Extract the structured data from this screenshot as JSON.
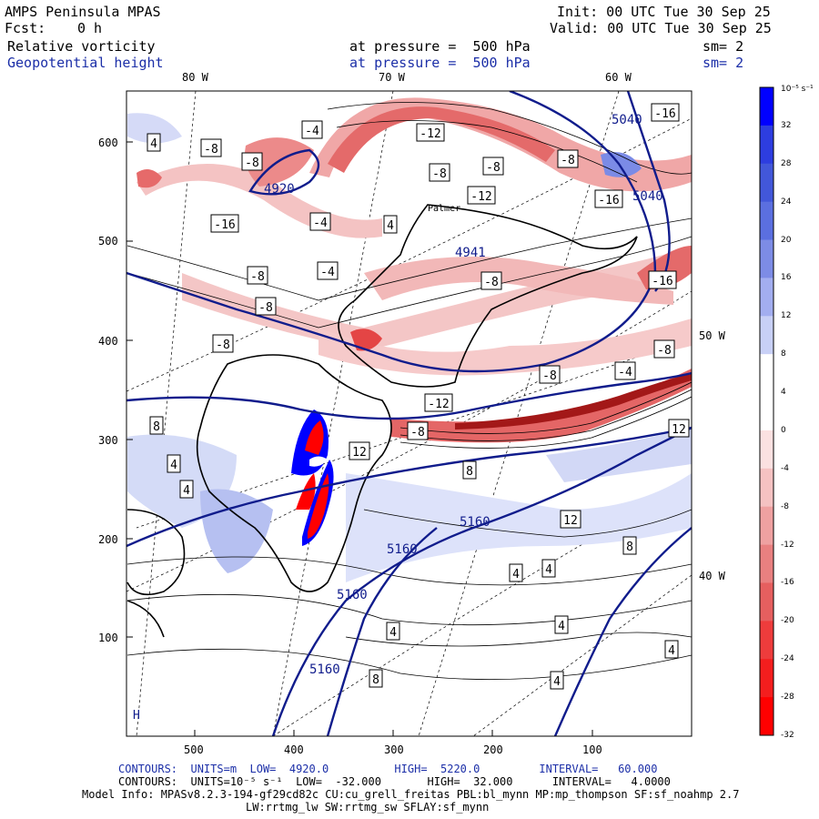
{
  "header": {
    "model": "AMPS Peninsula MPAS",
    "fcst_label": "Fcst:",
    "fcst_value": "0 h",
    "init": "Init: 00 UTC Tue 30 Sep 25",
    "valid": "Valid: 00 UTC Tue 30 Sep 25",
    "fields": [
      {
        "name": "Relative vorticity",
        "level": "at pressure =  500 hPa",
        "sm": "sm= 2",
        "color": "#000000"
      },
      {
        "name": "Geopotential height",
        "level": "at pressure =  500 hPa",
        "sm": "sm= 2",
        "color": "#1c2fa8"
      }
    ]
  },
  "map": {
    "top_lon_labels": [
      "80 W",
      "70 W",
      "60 W"
    ],
    "right_lon_labels": [
      "50 W",
      "40 W"
    ],
    "y_ticks": [
      "600",
      "500",
      "400",
      "300",
      "200",
      "100"
    ],
    "x_ticks": [
      "500",
      "400",
      "300",
      "200",
      "100"
    ],
    "place_labels": [
      "Palmer"
    ],
    "vort_contour_labels": [
      "4",
      "-8",
      "-8",
      "-4",
      "-12",
      "-8",
      "-8",
      "-16",
      "-16",
      "-4",
      "4",
      "-4",
      "-8",
      "-8",
      "-12",
      "-8",
      "-16",
      "-8",
      "-8",
      "-4",
      "-12",
      "-8",
      "12",
      "8",
      "4",
      "12",
      "8",
      "12",
      "4",
      "4",
      "4",
      "4",
      "4",
      "4",
      "8",
      "4",
      "8",
      "-16",
      "-8",
      "-8"
    ],
    "height_contour_labels": [
      "5040",
      "5040",
      "5160",
      "5160",
      "5160",
      "5160",
      "4920",
      "4941"
    ],
    "corner_label": "H",
    "colors": {
      "height_contour": "#101c8c",
      "vort_contour": "#000000",
      "coast": "#000000"
    }
  },
  "colorbar": {
    "unit_label": "10⁻⁵ s⁻¹",
    "tick_labels": [
      "32",
      "28",
      "24",
      "20",
      "16",
      "12",
      "8",
      "4",
      "0",
      "-4",
      "-8",
      "-12",
      "-16",
      "-20",
      "-24",
      "-28",
      "-32"
    ],
    "colors": [
      "#0000ff",
      "#2d3de0",
      "#4257da",
      "#5b6fe0",
      "#7d8ce6",
      "#a3aef0",
      "#c8d0f6",
      "#ffffff",
      "#ffffff",
      "#fbe1e1",
      "#f5c2c2",
      "#efa1a1",
      "#e98080",
      "#e65f5f",
      "#ee3c3c",
      "#f41e1e",
      "#ff0000"
    ]
  },
  "footer": {
    "line1": "CONTOURS:  UNITS=m  LOW=  4920.0          HIGH=  5220.0         INTERVAL=   60.000",
    "line2": "CONTOURS:  UNITS=10⁻⁵ s⁻¹  LOW=  -32.000       HIGH=  32.000      INTERVAL=   4.0000",
    "line3": "Model Info: MPASv8.2.3-194-gf29cd82c CU:cu_grell_freitas PBL:bl_mynn MP:mp_thompson SF:sf_noahmp 2.7",
    "line4": "LW:rrtmg_lw SW:rrtmg_sw SFLAY:sf_mynn"
  }
}
